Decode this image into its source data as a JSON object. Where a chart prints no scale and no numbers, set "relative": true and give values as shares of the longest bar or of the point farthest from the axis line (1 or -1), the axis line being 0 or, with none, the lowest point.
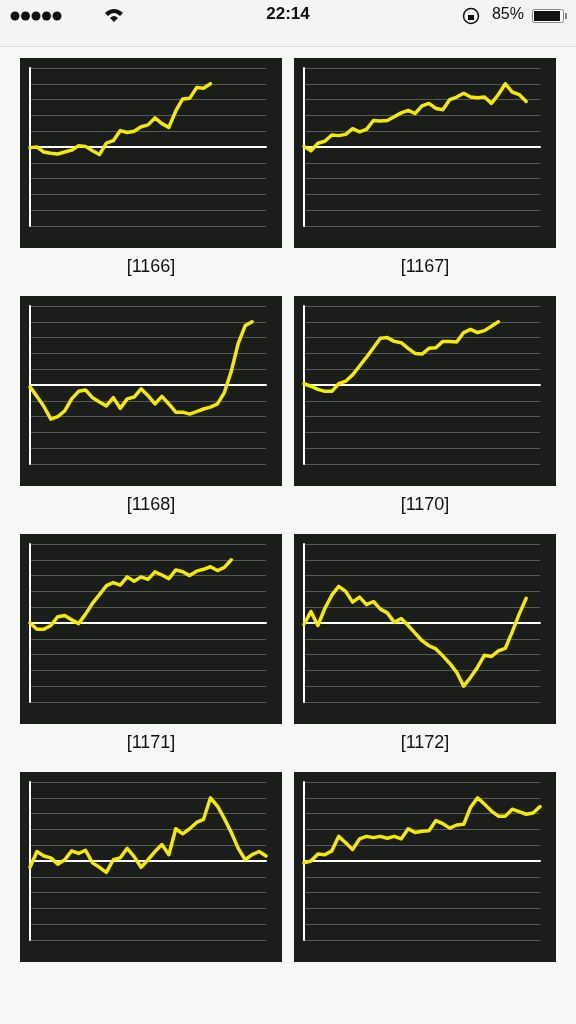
{
  "chart_data": [
    {
      "type": "other",
      "title": "22:14",
      "annotations": [
        "85%"
      ]
    },
    {
      "type": "line",
      "title": "[1166]",
      "relative": true,
      "grid": true,
      "categories": [
        null,
        null,
        null,
        null,
        null,
        null,
        null,
        null,
        null,
        null,
        null,
        null,
        null,
        null,
        null,
        null,
        null,
        null,
        null,
        null,
        null,
        null,
        null,
        null,
        null,
        null,
        null,
        null,
        null,
        null,
        null,
        null,
        null,
        null,
        null
      ],
      "series": [
        {
          "color": "#f2ea00",
          "values": [
            -0.01,
            0.0,
            -0.08,
            -0.1,
            -0.11,
            -0.08,
            -0.05,
            0.02,
            0.01,
            -0.06,
            -0.12,
            0.06,
            0.1,
            0.26,
            0.23,
            0.25,
            0.32,
            0.35,
            0.46,
            0.37,
            0.31,
            0.57,
            0.76,
            0.77,
            0.94,
            0.93,
            1,
            null,
            null,
            null,
            null,
            null,
            null,
            null,
            null
          ]
        }
      ]
    },
    {
      "type": "line",
      "title": "[1167]",
      "relative": true,
      "grid": true,
      "categories": [
        null,
        null,
        null,
        null,
        null,
        null,
        null,
        null,
        null,
        null,
        null,
        null,
        null,
        null,
        null,
        null,
        null,
        null,
        null,
        null,
        null,
        null,
        null,
        null,
        null,
        null,
        null,
        null,
        null,
        null,
        null,
        null,
        null,
        null,
        null
      ],
      "series": [
        {
          "color": "#f2ea00",
          "values": [
            0.01,
            -0.06,
            0.06,
            0.09,
            0.19,
            0.18,
            0.2,
            0.29,
            0.24,
            0.28,
            0.42,
            0.41,
            0.42,
            0.48,
            0.54,
            0.58,
            0.53,
            0.65,
            0.69,
            0.61,
            0.59,
            0.75,
            0.79,
            0.85,
            0.79,
            0.78,
            0.79,
            0.69,
            0.83,
            1,
            0.87,
            0.83,
            0.72,
            null,
            null
          ]
        }
      ]
    },
    {
      "type": "line",
      "title": "[1168]",
      "relative": true,
      "grid": true,
      "categories": [
        null,
        null,
        null,
        null,
        null,
        null,
        null,
        null,
        null,
        null,
        null,
        null,
        null,
        null,
        null,
        null,
        null,
        null,
        null,
        null,
        null,
        null,
        null,
        null,
        null,
        null,
        null,
        null,
        null,
        null,
        null,
        null,
        null,
        null,
        null
      ],
      "series": [
        {
          "color": "#f2ea00",
          "values": [
            -0.03,
            -0.18,
            -0.34,
            -0.54,
            -0.5,
            -0.41,
            -0.22,
            -0.1,
            -0.08,
            -0.2,
            -0.27,
            -0.33,
            -0.2,
            -0.37,
            -0.22,
            -0.19,
            -0.06,
            -0.17,
            -0.3,
            -0.18,
            -0.3,
            -0.43,
            -0.43,
            -0.46,
            -0.42,
            -0.38,
            -0.35,
            -0.3,
            -0.12,
            0.22,
            0.66,
            0.94,
            1,
            null,
            null
          ]
        }
      ]
    },
    {
      "type": "line",
      "title": "[1170]",
      "relative": true,
      "grid": true,
      "categories": [
        null,
        null,
        null,
        null,
        null,
        null,
        null,
        null,
        null,
        null,
        null,
        null,
        null,
        null,
        null,
        null,
        null,
        null,
        null,
        null,
        null,
        null,
        null,
        null,
        null,
        null,
        null,
        null,
        null,
        null,
        null,
        null,
        null,
        null,
        null
      ],
      "series": [
        {
          "color": "#f2ea00",
          "values": [
            0.02,
            -0.02,
            -0.07,
            -0.1,
            -0.1,
            0.02,
            0.06,
            0.16,
            0.3,
            0.44,
            0.59,
            0.74,
            0.75,
            0.69,
            0.67,
            0.58,
            0.5,
            0.49,
            0.58,
            0.59,
            0.69,
            0.69,
            0.68,
            0.83,
            0.88,
            0.83,
            0.86,
            0.93,
            1,
            null,
            null,
            null,
            null,
            null,
            null
          ]
        }
      ]
    },
    {
      "type": "line",
      "title": "[1171]",
      "relative": true,
      "grid": true,
      "categories": [
        null,
        null,
        null,
        null,
        null,
        null,
        null,
        null,
        null,
        null,
        null,
        null,
        null,
        null,
        null,
        null,
        null,
        null,
        null,
        null,
        null,
        null,
        null,
        null,
        null,
        null,
        null,
        null,
        null,
        null,
        null,
        null,
        null,
        null,
        null
      ],
      "series": [
        {
          "color": "#f2ea00",
          "values": [
            0.0,
            -0.1,
            -0.1,
            -0.04,
            0.1,
            0.12,
            0.05,
            -0.01,
            0.14,
            0.31,
            0.45,
            0.59,
            0.64,
            0.6,
            0.73,
            0.66,
            0.73,
            0.69,
            0.81,
            0.76,
            0.7,
            0.84,
            0.81,
            0.75,
            0.82,
            0.85,
            0.89,
            0.83,
            0.88,
            1,
            null,
            null,
            null,
            null,
            null
          ]
        }
      ]
    },
    {
      "type": "line",
      "title": "[1172]",
      "relative": true,
      "grid": true,
      "categories": [
        null,
        null,
        null,
        null,
        null,
        null,
        null,
        null,
        null,
        null,
        null,
        null,
        null,
        null,
        null,
        null,
        null,
        null,
        null,
        null,
        null,
        null,
        null,
        null,
        null,
        null,
        null,
        null,
        null,
        null,
        null,
        null,
        null,
        null,
        null
      ],
      "series": [
        {
          "color": "#f2ea00",
          "values": [
            -0.02,
            0.18,
            -0.04,
            0.23,
            0.44,
            0.58,
            0.5,
            0.33,
            0.41,
            0.29,
            0.34,
            0.22,
            0.16,
            0.01,
            0.07,
            -0.04,
            -0.16,
            -0.28,
            -0.36,
            -0.41,
            -0.52,
            -0.64,
            -0.78,
            -1,
            -0.86,
            -0.7,
            -0.51,
            -0.53,
            -0.44,
            -0.4,
            -0.14,
            0.14,
            0.39,
            null,
            null
          ]
        }
      ]
    },
    {
      "type": "line",
      "relative": true,
      "grid": true,
      "categories": [
        null,
        null,
        null,
        null,
        null,
        null,
        null,
        null,
        null,
        null,
        null,
        null,
        null,
        null,
        null,
        null,
        null,
        null,
        null,
        null,
        null,
        null,
        null,
        null,
        null,
        null,
        null,
        null,
        null,
        null,
        null,
        null,
        null,
        null,
        null
      ],
      "series": [
        {
          "color": "#f2ea00",
          "values": [
            -0.1,
            0.15,
            0.08,
            0.05,
            -0.05,
            0.02,
            0.16,
            0.12,
            0.17,
            -0.03,
            -0.1,
            -0.18,
            0.02,
            0.05,
            0.2,
            0.07,
            -0.1,
            0.02,
            0.15,
            0.26,
            0.1,
            0.51,
            0.43,
            0.51,
            0.61,
            0.66,
            1,
            0.87,
            0.67,
            0.45,
            0.2,
            0.02,
            0.1,
            0.15,
            0.08
          ]
        }
      ]
    },
    {
      "type": "line",
      "relative": true,
      "grid": true,
      "categories": [
        null,
        null,
        null,
        null,
        null,
        null,
        null,
        null,
        null,
        null,
        null,
        null,
        null,
        null,
        null,
        null,
        null,
        null,
        null,
        null,
        null,
        null,
        null,
        null,
        null,
        null,
        null,
        null,
        null,
        null,
        null,
        null,
        null,
        null,
        null
      ],
      "series": [
        {
          "color": "#f2ea00",
          "values": [
            -0.03,
            0.0,
            0.11,
            0.1,
            0.16,
            0.39,
            0.29,
            0.18,
            0.35,
            0.39,
            0.37,
            0.39,
            0.36,
            0.39,
            0.35,
            0.51,
            0.45,
            0.47,
            0.48,
            0.64,
            0.59,
            0.52,
            0.57,
            0.58,
            0.85,
            1,
            0.9,
            0.79,
            0.71,
            0.71,
            0.82,
            0.78,
            0.74,
            0.76,
            0.86
          ]
        }
      ]
    }
  ]
}
